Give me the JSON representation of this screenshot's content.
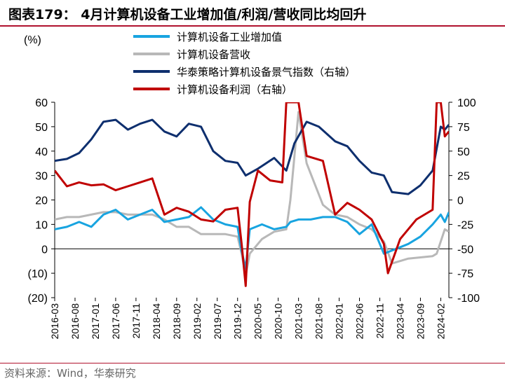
{
  "header": {
    "title": "图表179： 4月计算机设备工业增加值/利润/营收同比均回升"
  },
  "footer": {
    "source": "资料来源：Wind，华泰研究"
  },
  "chart_data": {
    "type": "line",
    "title": "图表179： 4月计算机设备工业增加值/利润/营收同比均回升",
    "left_unit": "(%)",
    "y_left": {
      "min": -20,
      "max": 60,
      "ticks": [
        60,
        50,
        40,
        30,
        20,
        10,
        0,
        -10,
        -20
      ],
      "tick_labels": [
        "60",
        "50",
        "40",
        "30",
        "20",
        "10",
        "0",
        "(10)",
        "(20)"
      ]
    },
    "y_right": {
      "min": -100,
      "max": 100,
      "ticks": [
        100,
        75,
        50,
        25,
        0,
        -25,
        -50,
        -75,
        -100
      ],
      "tick_labels": [
        "100",
        "75",
        "50",
        "25",
        "0",
        "-25",
        "-50",
        "-75",
        "-100"
      ]
    },
    "x_start": "2016-03",
    "x_end": "2024-04",
    "x_tick_labels": [
      "2016-03",
      "2016-08",
      "2017-01",
      "2017-06",
      "2017-11",
      "2018-04",
      "2018-09",
      "2019-02",
      "2019-07",
      "2019-12",
      "2020-05",
      "2020-10",
      "2021-03",
      "2021-08",
      "2022-01",
      "2022-06",
      "2022-11",
      "2023-04",
      "2023-09",
      "2024-02"
    ],
    "legend_placement": "top",
    "series": [
      {
        "name": "计算机设备工业增加值",
        "axis": "left",
        "color": "#18a4e0",
        "points": [
          [
            "2016-03",
            8
          ],
          [
            "2016-06",
            9
          ],
          [
            "2016-09",
            11
          ],
          [
            "2016-12",
            9
          ],
          [
            "2017-03",
            14
          ],
          [
            "2017-06",
            16
          ],
          [
            "2017-09",
            12
          ],
          [
            "2017-12",
            14
          ],
          [
            "2018-03",
            16
          ],
          [
            "2018-06",
            11
          ],
          [
            "2018-09",
            12
          ],
          [
            "2018-12",
            13
          ],
          [
            "2019-03",
            17
          ],
          [
            "2019-06",
            12
          ],
          [
            "2019-09",
            10
          ],
          [
            "2019-12",
            9
          ],
          [
            "2020-01",
            -1
          ],
          [
            "2020-02",
            -8
          ],
          [
            "2020-03",
            8
          ],
          [
            "2020-06",
            10
          ],
          [
            "2020-09",
            8
          ],
          [
            "2020-12",
            9
          ],
          [
            "2021-01",
            11
          ],
          [
            "2021-03",
            12
          ],
          [
            "2021-06",
            12
          ],
          [
            "2021-09",
            13
          ],
          [
            "2021-12",
            13
          ],
          [
            "2022-03",
            11
          ],
          [
            "2022-06",
            6
          ],
          [
            "2022-09",
            10
          ],
          [
            "2022-12",
            -2
          ],
          [
            "2023-03",
            0
          ],
          [
            "2023-06",
            2
          ],
          [
            "2023-09",
            5
          ],
          [
            "2023-12",
            10
          ],
          [
            "2024-02",
            14
          ],
          [
            "2024-03",
            11
          ],
          [
            "2024-04",
            15
          ]
        ]
      },
      {
        "name": "计算机设备营收",
        "axis": "left",
        "color": "#b8b8b8",
        "points": [
          [
            "2016-03",
            12
          ],
          [
            "2016-06",
            13
          ],
          [
            "2016-09",
            13
          ],
          [
            "2016-12",
            14
          ],
          [
            "2017-03",
            15
          ],
          [
            "2017-06",
            15
          ],
          [
            "2017-09",
            14
          ],
          [
            "2017-12",
            14
          ],
          [
            "2018-03",
            14
          ],
          [
            "2018-06",
            12
          ],
          [
            "2018-09",
            9
          ],
          [
            "2018-12",
            9
          ],
          [
            "2019-03",
            6
          ],
          [
            "2019-06",
            6
          ],
          [
            "2019-09",
            6
          ],
          [
            "2019-12",
            5
          ],
          [
            "2020-01",
            -2
          ],
          [
            "2020-02",
            -11
          ],
          [
            "2020-03",
            -2
          ],
          [
            "2020-06",
            4
          ],
          [
            "2020-09",
            7
          ],
          [
            "2020-12",
            8
          ],
          [
            "2021-01",
            20
          ],
          [
            "2021-02",
            38
          ],
          [
            "2021-03",
            56
          ],
          [
            "2021-05",
            35
          ],
          [
            "2021-09",
            18
          ],
          [
            "2021-12",
            14
          ],
          [
            "2022-03",
            13
          ],
          [
            "2022-06",
            10
          ],
          [
            "2022-09",
            8
          ],
          [
            "2022-12",
            3
          ],
          [
            "2023-02",
            -6
          ],
          [
            "2023-06",
            -4
          ],
          [
            "2023-12",
            -3
          ],
          [
            "2024-01",
            -2
          ],
          [
            "2024-03",
            8
          ],
          [
            "2024-04",
            7
          ]
        ]
      },
      {
        "name": "华泰策略计算机设备景气指数（右轴）",
        "axis": "right",
        "color": "#0e2f6e",
        "points": [
          [
            "2016-03",
            40
          ],
          [
            "2016-06",
            42
          ],
          [
            "2016-09",
            48
          ],
          [
            "2016-12",
            62
          ],
          [
            "2017-03",
            80
          ],
          [
            "2017-06",
            82
          ],
          [
            "2017-09",
            72
          ],
          [
            "2017-12",
            78
          ],
          [
            "2018-03",
            82
          ],
          [
            "2018-06",
            70
          ],
          [
            "2018-09",
            65
          ],
          [
            "2018-12",
            78
          ],
          [
            "2019-03",
            75
          ],
          [
            "2019-06",
            50
          ],
          [
            "2019-09",
            40
          ],
          [
            "2019-12",
            38
          ],
          [
            "2020-02",
            25
          ],
          [
            "2020-05",
            32
          ],
          [
            "2020-09",
            43
          ],
          [
            "2020-12",
            30
          ],
          [
            "2021-02",
            58
          ],
          [
            "2021-05",
            80
          ],
          [
            "2021-08",
            75
          ],
          [
            "2021-12",
            60
          ],
          [
            "2022-03",
            55
          ],
          [
            "2022-06",
            40
          ],
          [
            "2022-09",
            28
          ],
          [
            "2022-12",
            25
          ],
          [
            "2023-02",
            8
          ],
          [
            "2023-06",
            6
          ],
          [
            "2023-09",
            15
          ],
          [
            "2023-12",
            30
          ],
          [
            "2024-02",
            75
          ],
          [
            "2024-03",
            72
          ],
          [
            "2024-04",
            77
          ]
        ]
      },
      {
        "name": "计算机设备利润（右轴）",
        "axis": "right",
        "color": "#c00000",
        "points": [
          [
            "2016-03",
            30
          ],
          [
            "2016-06",
            14
          ],
          [
            "2016-09",
            18
          ],
          [
            "2016-12",
            15
          ],
          [
            "2017-03",
            16
          ],
          [
            "2017-06",
            10
          ],
          [
            "2017-09",
            14
          ],
          [
            "2017-12",
            18
          ],
          [
            "2018-03",
            22
          ],
          [
            "2018-06",
            -15
          ],
          [
            "2018-09",
            -8
          ],
          [
            "2018-12",
            -12
          ],
          [
            "2019-03",
            -20
          ],
          [
            "2019-06",
            -22
          ],
          [
            "2019-09",
            -10
          ],
          [
            "2019-12",
            -8
          ],
          [
            "2020-01",
            -45
          ],
          [
            "2020-02",
            -88
          ],
          [
            "2020-03",
            -2
          ],
          [
            "2020-05",
            30
          ],
          [
            "2020-08",
            20
          ],
          [
            "2020-11",
            18
          ],
          [
            "2020-12",
            100
          ],
          [
            "2021-01",
            100
          ],
          [
            "2021-03",
            100
          ],
          [
            "2021-05",
            45
          ],
          [
            "2021-09",
            40
          ],
          [
            "2021-12",
            -15
          ],
          [
            "2022-03",
            -3
          ],
          [
            "2022-06",
            -10
          ],
          [
            "2022-09",
            -20
          ],
          [
            "2022-12",
            -45
          ],
          [
            "2023-01",
            -75
          ],
          [
            "2023-04",
            -40
          ],
          [
            "2023-08",
            -20
          ],
          [
            "2023-12",
            -10
          ],
          [
            "2024-01",
            100
          ],
          [
            "2024-02",
            100
          ],
          [
            "2024-03",
            65
          ],
          [
            "2024-04",
            70
          ]
        ]
      }
    ]
  }
}
